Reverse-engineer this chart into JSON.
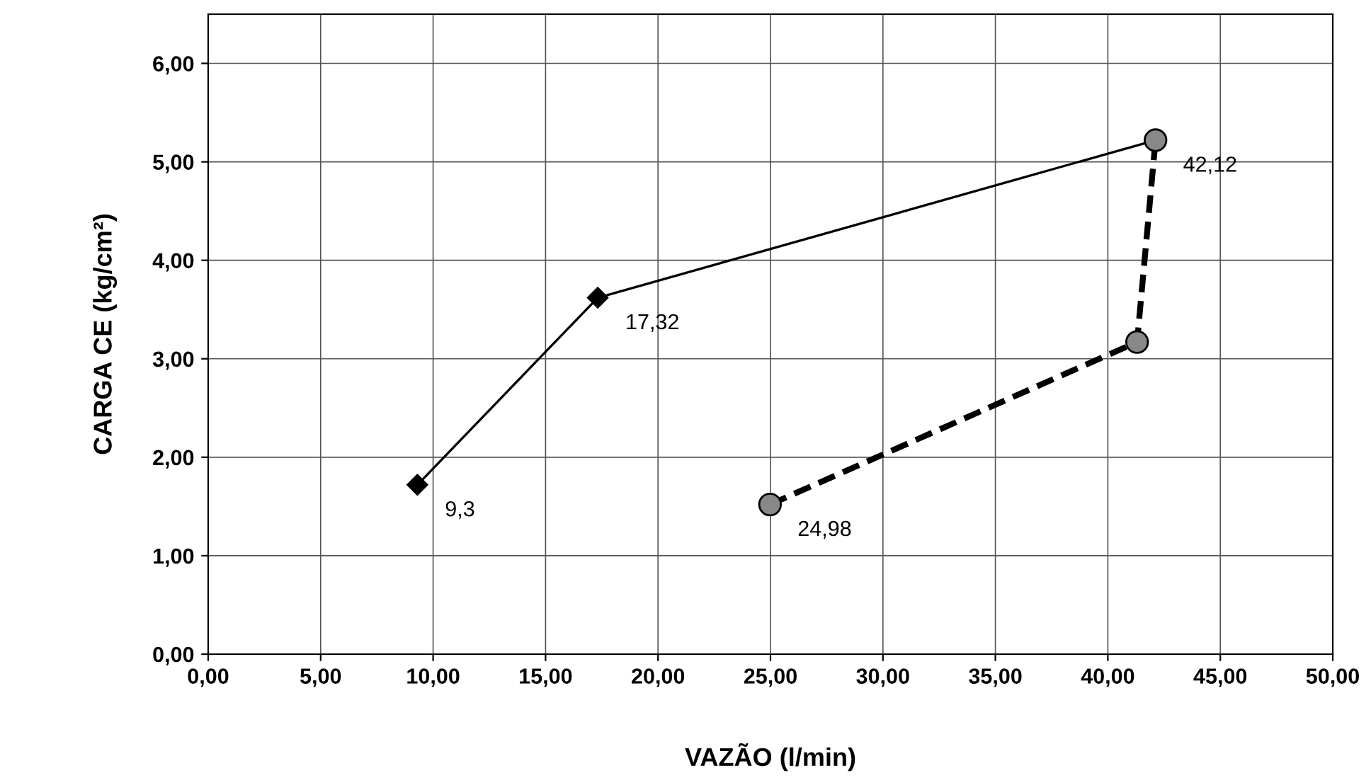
{
  "chart_data": {
    "type": "line",
    "xlabel": "VAZÃO (l/min)",
    "ylabel": "CARGA CE (kg/cm²)",
    "series": [
      {
        "color": "#000000",
        "x": [
          9.3,
          17.32,
          42.12
        ],
        "values": [
          1.72,
          3.62,
          5.22
        ],
        "marker": "diamond",
        "line_style": "solid"
      },
      {
        "color": "#000000",
        "x": [
          24.98,
          41.3,
          42.12
        ],
        "values": [
          1.52,
          3.17,
          5.22
        ],
        "marker": "circle",
        "line_style": "dashed"
      }
    ],
    "annotations": [
      {
        "text": "9,3",
        "x": 9.3,
        "y": 1.72
      },
      {
        "text": "17,32",
        "x": 17.32,
        "y": 3.62
      },
      {
        "text": "24,98",
        "x": 24.98,
        "y": 1.52
      },
      {
        "text": "42,12",
        "x": 42.12,
        "y": 5.22
      }
    ],
    "xlim": [
      0,
      50
    ],
    "ylim": [
      0,
      6.5
    ],
    "xticks": [
      {
        "value": 0,
        "label": "0,00"
      },
      {
        "value": 5,
        "label": "5,00"
      },
      {
        "value": 10,
        "label": "10,00"
      },
      {
        "value": 15,
        "label": "15,00"
      },
      {
        "value": 20,
        "label": "20,00"
      },
      {
        "value": 25,
        "label": "25,00"
      },
      {
        "value": 30,
        "label": "30,00"
      },
      {
        "value": 35,
        "label": "35,00"
      },
      {
        "value": 40,
        "label": "40,00"
      },
      {
        "value": 45,
        "label": "45,00"
      },
      {
        "value": 50,
        "label": "50,00"
      }
    ],
    "yticks": [
      {
        "value": 0,
        "label": "0,00"
      },
      {
        "value": 1,
        "label": "1,00"
      },
      {
        "value": 2,
        "label": "2,00"
      },
      {
        "value": 3,
        "label": "3,00"
      },
      {
        "value": 4,
        "label": "4,00"
      },
      {
        "value": 5,
        "label": "5,00"
      },
      {
        "value": 6,
        "label": "6,00"
      }
    ],
    "grid": true
  }
}
